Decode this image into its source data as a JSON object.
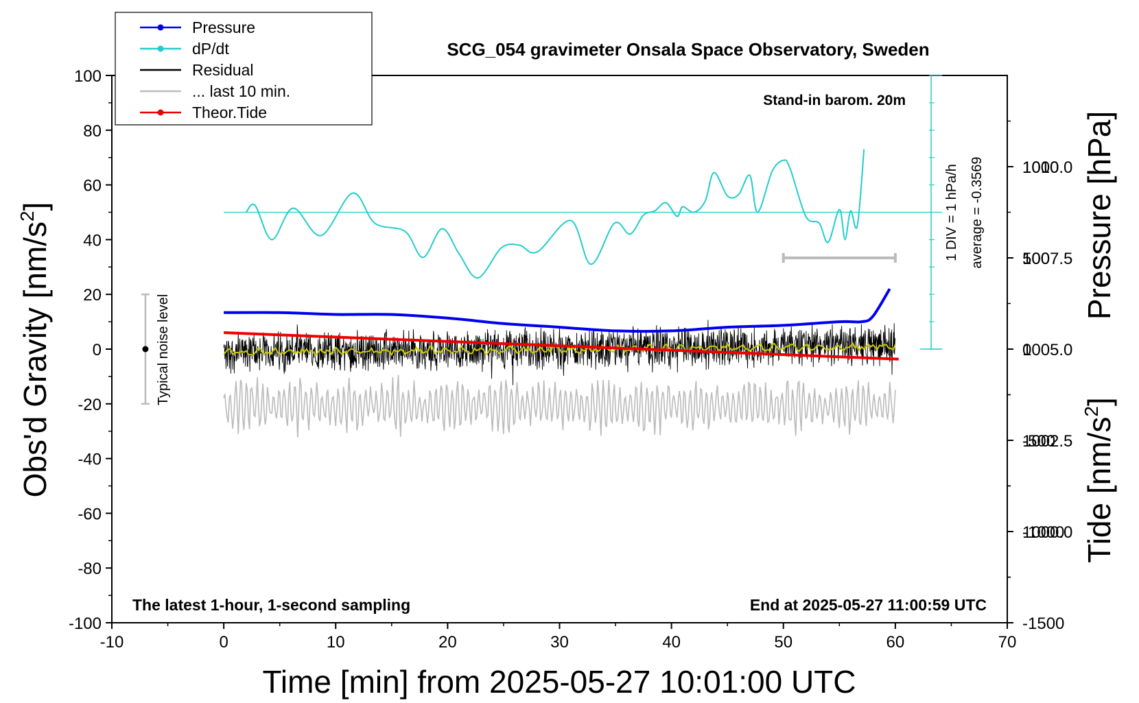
{
  "chart_data": {
    "type": "line",
    "title": "SCG_054 gravimeter Onsala Space Observatory, Sweden",
    "xlabel": "Time [min] from 2025-05-27 10:01:00 UTC",
    "ylabel_left": "Obs'd Gravity [nm/s",
    "ylabel_left_sup": "2",
    "ylabel_left_end": "]",
    "ylabel_right_pressure": "Pressure [hPa]",
    "ylabel_right_tide": "Tide [nm/s",
    "ylabel_right_tide_sup": "2",
    "ylabel_right_tide_end": "]",
    "xlim": [
      -10,
      70
    ],
    "ylim": [
      -100,
      100
    ],
    "pressure_lim": [
      997.5,
      1012.5
    ],
    "tide_lim": [
      -1500,
      1500
    ],
    "x_ticks": [
      "-10",
      "0",
      "10",
      "20",
      "30",
      "40",
      "50",
      "60",
      "70"
    ],
    "y_ticks": [
      "100",
      "80",
      "60",
      "40",
      "20",
      "0",
      "-20",
      "-40",
      "-60",
      "-80",
      "-100"
    ],
    "pressure_ticks": [
      "1010.0",
      "1007.5",
      "1005.0",
      "1002.5",
      "1000.0"
    ],
    "tide_ticks": [
      "1000",
      "500",
      "0",
      "-500",
      "-1000",
      "-1500"
    ],
    "legend": {
      "position": "top-left",
      "entries": [
        {
          "label": "Pressure",
          "color": "#0000ee",
          "marker": true
        },
        {
          "label": "dP/dt",
          "color": "#22cccc",
          "marker": true
        },
        {
          "label": "Residual",
          "color": "#000000",
          "marker": false
        },
        {
          "label": "... last 10 min.",
          "color": "#bbbbbb",
          "marker": false
        },
        {
          "label": "Theor.Tide",
          "color": "#ee0000",
          "marker": true
        }
      ]
    },
    "annotations": {
      "stand_in": "Stand-in barom. 20m",
      "div_label": "1 DIV = 1 hPa/h",
      "average_label": "average = -0.3569",
      "noise_label": "Typical noise level",
      "bottom_left": "The latest 1-hour, 1-second sampling",
      "bottom_right": "End at 2025-05-27 11:00:59 UTC"
    },
    "series": [
      {
        "name": "Pressure",
        "color": "#0000ee",
        "axis": "pressure",
        "x": [
          0,
          5,
          10,
          15,
          20,
          25,
          30,
          35,
          40,
          45,
          50,
          55,
          57,
          58,
          59.5
        ],
        "y": [
          1006.0,
          1006.0,
          1005.95,
          1005.95,
          1005.85,
          1005.7,
          1005.6,
          1005.5,
          1005.5,
          1005.6,
          1005.65,
          1005.75,
          1005.75,
          1005.9,
          1006.65
        ]
      },
      {
        "name": "dP/dt",
        "color": "#22cccc",
        "axis": "gravity",
        "reference_y": 50,
        "x": [
          2,
          2.8,
          4.3,
          6.2,
          8.7,
          11.5,
          13.5,
          16.2,
          17.8,
          19.5,
          21,
          22.7,
          24.8,
          26.4,
          28,
          31,
          32.8,
          34.9,
          36.3,
          37.5,
          38.5,
          39.5,
          40.5,
          41,
          42,
          43,
          43.8,
          45,
          46,
          47,
          47.7,
          49,
          50,
          50.6,
          52,
          53.2,
          54,
          55,
          55.5,
          56,
          56.6,
          57.2
        ],
        "y": [
          50,
          52.5,
          40,
          51.5,
          41.5,
          57,
          46,
          43,
          33.5,
          44,
          35,
          26,
          37,
          38,
          35.5,
          47,
          31,
          46,
          42,
          49,
          50.5,
          53.5,
          48.5,
          52,
          50,
          54,
          64.5,
          56,
          56.5,
          63.5,
          50,
          65,
          69,
          66,
          48.5,
          46,
          39,
          51,
          40,
          50.5,
          45,
          73
        ]
      },
      {
        "name": "Residual",
        "color": "#000000",
        "axis": "gravity",
        "x_range": [
          0,
          60
        ],
        "baseline_start": -1.2,
        "baseline_end": 1.5,
        "noise_amplitude": 6
      },
      {
        "name": "Residual smooth",
        "color": "#cccc00",
        "axis": "gravity",
        "x_range": [
          0,
          60
        ],
        "baseline_start": -1.2,
        "baseline_end": 1.0
      },
      {
        "name": "... last 10 min.",
        "color": "#bbbbbb",
        "axis": "tide",
        "x_range": [
          0,
          60
        ],
        "center": -310,
        "amplitude": 180,
        "scalebar_x": [
          50,
          60
        ],
        "scalebar_y": 500
      },
      {
        "name": "Theor.Tide",
        "color": "#ee0000",
        "axis": "tide",
        "x": [
          0,
          60.3
        ],
        "y": [
          90,
          -55
        ]
      }
    ],
    "noise_level": {
      "x": -7,
      "y": 0,
      "range": [
        -20,
        20
      ]
    },
    "grid": false
  }
}
